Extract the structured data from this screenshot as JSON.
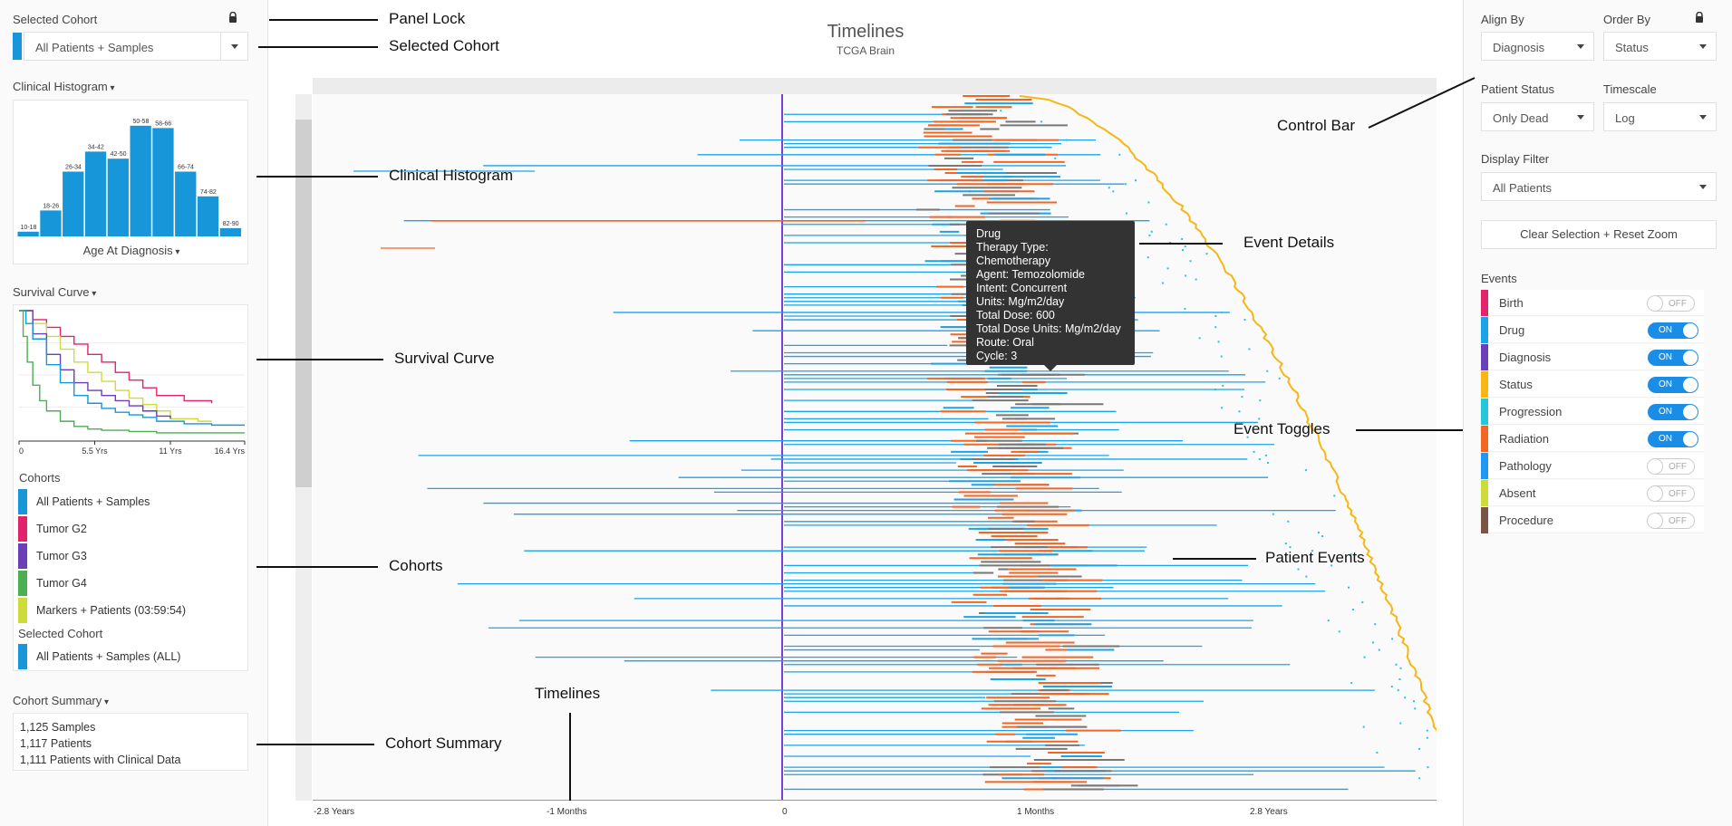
{
  "title": "Timelines",
  "subtitle": "TCGA Brain",
  "left": {
    "selected_cohort_label": "Selected Cohort",
    "selected_cohort_value": "All Patients + Samples",
    "histogram_label": "Clinical Histogram",
    "histogram_xlabel": "Age At Diagnosis",
    "survival_label": "Survival Curve",
    "cohorts_label": "Cohorts",
    "cohorts": [
      {
        "name": "All Patients + Samples",
        "color": "#1796d9"
      },
      {
        "name": "Tumor G2",
        "color": "#e3226c"
      },
      {
        "name": "Tumor G3",
        "color": "#6a3fb8"
      },
      {
        "name": "Tumor G4",
        "color": "#4caf50"
      },
      {
        "name": "Markers + Patients (03:59:54)",
        "color": "#cddc39"
      }
    ],
    "selected_cohort_label2": "Selected Cohort",
    "selected_cohort_item": {
      "name": "All Patients + Samples (ALL)",
      "color": "#1796d9"
    },
    "summary_label": "Cohort Summary",
    "summary_lines": [
      "1,125 Samples",
      "1,117 Patients",
      "1,111 Patients with Clinical Data"
    ]
  },
  "right": {
    "align_by_label": "Align By",
    "align_by_value": "Diagnosis",
    "order_by_label": "Order By",
    "order_by_value": "Status",
    "patient_status_label": "Patient Status",
    "patient_status_value": "Only Dead",
    "timescale_label": "Timescale",
    "timescale_value": "Log",
    "display_filter_label": "Display Filter",
    "display_filter_value": "All Patients",
    "clear_button": "Clear Selection + Reset Zoom",
    "events_label": "Events",
    "events": [
      {
        "name": "Birth",
        "color": "#e3226c",
        "state": "OFF"
      },
      {
        "name": "Drug",
        "color": "#1aa3e8",
        "state": "ON"
      },
      {
        "name": "Diagnosis",
        "color": "#6a3fb8",
        "state": "ON"
      },
      {
        "name": "Status",
        "color": "#f7b614",
        "state": "ON"
      },
      {
        "name": "Progression",
        "color": "#26c6da",
        "state": "ON"
      },
      {
        "name": "Radiation",
        "color": "#f26522",
        "state": "ON"
      },
      {
        "name": "Pathology",
        "color": "#2196f3",
        "state": "OFF"
      },
      {
        "name": "Absent",
        "color": "#cddc39",
        "state": "OFF"
      },
      {
        "name": "Procedure",
        "color": "#795548",
        "state": "OFF"
      }
    ]
  },
  "tooltip": {
    "lines": [
      "Drug",
      "Therapy Type: Chemotherapy",
      "Agent: Temozolomide",
      "Intent: Concurrent",
      "Units: Mg/m2/day",
      "Total Dose: 600",
      "Total Dose Units: Mg/m2/day",
      "Route: Oral",
      "Cycle: 3"
    ]
  },
  "x_axis_ticks": [
    "-2.8 Years",
    "-1 Months",
    "0",
    "1 Months",
    "2.8 Years"
  ],
  "callouts": {
    "panel_lock": "Panel Lock",
    "selected_cohort": "Selected Cohort",
    "clinical_histogram": "Clinical Histogram",
    "survival_curve": "Survival Curve",
    "cohorts": "Cohorts",
    "cohort_summary": "Cohort Summary",
    "timelines": "Timelines",
    "control_bar": "Control Bar",
    "event_details": "Event Details",
    "event_toggles": "Event Toggles",
    "patient_events": "Patient Events"
  },
  "chart_data": [
    {
      "type": "bar",
      "categories": [
        "10-18",
        "18-26",
        "26-34",
        "34-42",
        "42-50",
        "50-58",
        "58-66",
        "66-74",
        "74-82",
        "82-90"
      ],
      "values": [
        4,
        22,
        55,
        72,
        66,
        94,
        92,
        55,
        34,
        7
      ],
      "xlabel": "Age At Diagnosis",
      "color": "#1796d9"
    },
    {
      "type": "line",
      "x_ticks": [
        "0",
        "5.5 Yrs",
        "11 Yrs",
        "16.4 Yrs"
      ],
      "xlim": [
        0,
        16.4
      ],
      "ylim": [
        0,
        1
      ],
      "series": [
        {
          "color": "#e3226c",
          "x": [
            0,
            1,
            2,
            3,
            4,
            5,
            6,
            7,
            8,
            9,
            10,
            12,
            14
          ],
          "y": [
            1,
            0.93,
            0.87,
            0.8,
            0.74,
            0.66,
            0.6,
            0.52,
            0.46,
            0.4,
            0.34,
            0.3,
            0.28
          ]
        },
        {
          "color": "#cddc39",
          "x": [
            0,
            1,
            2,
            3,
            4,
            5,
            6,
            7,
            8,
            9,
            10,
            11,
            13,
            14
          ],
          "y": [
            1,
            0.9,
            0.8,
            0.7,
            0.6,
            0.52,
            0.45,
            0.38,
            0.32,
            0.27,
            0.22,
            0.16,
            0.14,
            0.14
          ]
        },
        {
          "color": "#6a3fb8",
          "x": [
            0,
            1,
            2,
            3,
            4,
            5,
            6,
            7,
            8,
            9,
            10,
            11
          ],
          "y": [
            1,
            0.82,
            0.66,
            0.54,
            0.44,
            0.38,
            0.34,
            0.3,
            0.26,
            0.22,
            0.18,
            0.16
          ]
        },
        {
          "color": "#1796d9",
          "x": [
            0,
            0.5,
            1,
            2,
            3,
            4,
            5,
            6,
            7,
            8,
            9,
            10,
            12,
            14,
            16.4
          ],
          "y": [
            1,
            0.9,
            0.78,
            0.58,
            0.44,
            0.34,
            0.28,
            0.24,
            0.21,
            0.19,
            0.17,
            0.14,
            0.12,
            0.11,
            0.11
          ]
        },
        {
          "color": "#4caf50",
          "x": [
            0,
            0.3,
            0.6,
            1,
            1.5,
            2,
            3,
            4,
            5,
            6,
            8,
            10,
            12,
            16.4
          ],
          "y": [
            1,
            0.8,
            0.6,
            0.42,
            0.3,
            0.22,
            0.14,
            0.1,
            0.08,
            0.07,
            0.06,
            0.05,
            0.05,
            0.05
          ]
        }
      ]
    }
  ]
}
